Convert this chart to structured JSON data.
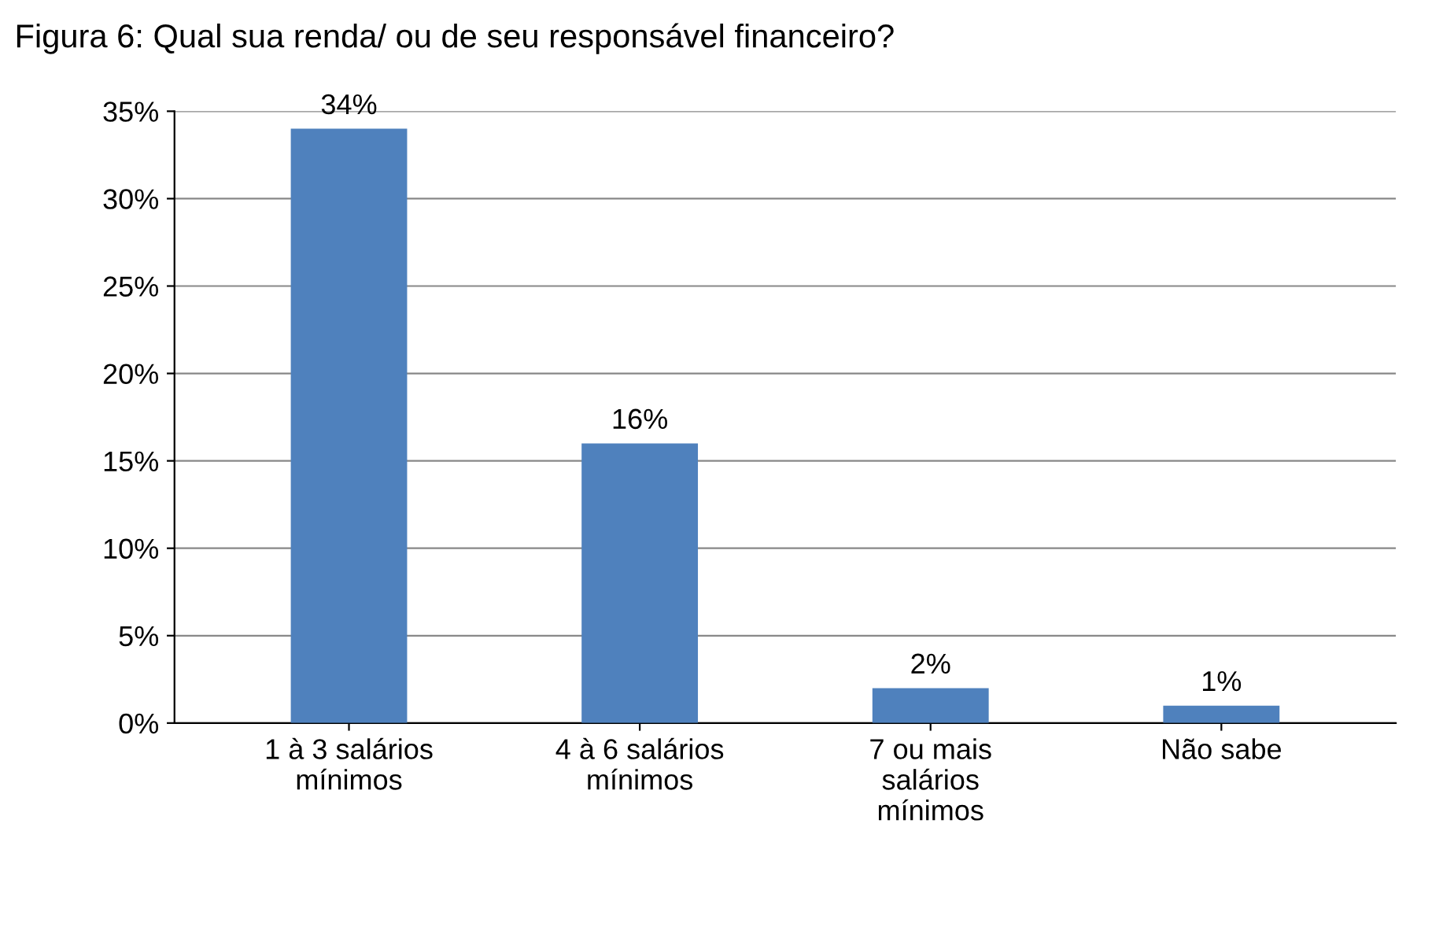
{
  "chart_data": {
    "type": "bar",
    "title": "Figura 6: Qual sua renda/ ou de seu responsável financeiro?",
    "categories": [
      "1 à 3 salários\nmínimos",
      "4 à 6 salários\nmínimos",
      "7 ou mais\nsalários\nmínimos",
      "Não sabe"
    ],
    "values": [
      34,
      16,
      2,
      1
    ],
    "color": "#4f81bd",
    "value_labels": [
      "34%",
      "16%",
      "2%",
      "1%"
    ],
    "ylim": [
      0,
      35
    ],
    "yticks": [
      {
        "value": 0,
        "label": "0%"
      },
      {
        "value": 5,
        "label": "5%"
      },
      {
        "value": 10,
        "label": "10%"
      },
      {
        "value": 15,
        "label": "15%"
      },
      {
        "value": 20,
        "label": "20%"
      },
      {
        "value": 25,
        "label": "25%"
      },
      {
        "value": 30,
        "label": "30%"
      },
      {
        "value": 35,
        "label": "35%"
      }
    ],
    "grid": "y"
  }
}
